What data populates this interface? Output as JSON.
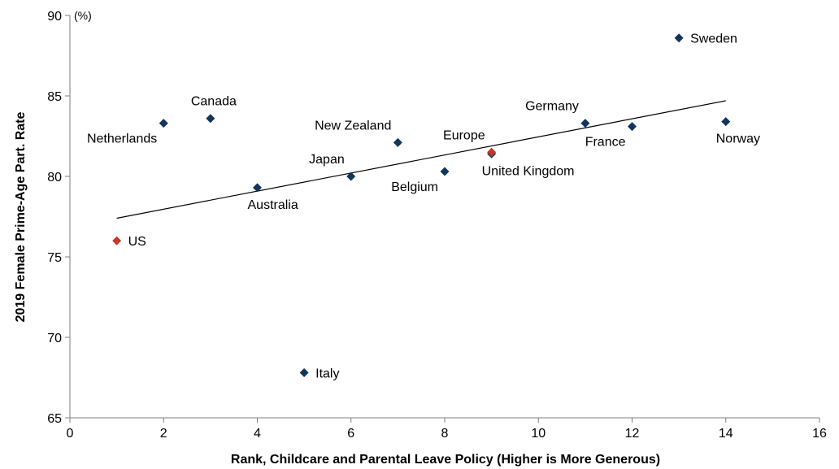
{
  "chart_data": {
    "type": "scatter",
    "xlabel": "Rank, Childcare and Parental Leave Policy (Higher is More Generous)",
    "ylabel": "2019 Female Prime-Age Part. Rate",
    "y_unit": "(%)",
    "xlim": [
      0,
      16
    ],
    "ylim": [
      65,
      90
    ],
    "x_ticks": [
      0,
      2,
      4,
      6,
      8,
      10,
      12,
      14,
      16
    ],
    "y_ticks": [
      65,
      70,
      75,
      80,
      85,
      90
    ],
    "grid": false,
    "legend": "none",
    "colors": {
      "country": "#12355b",
      "highlight": "#c0392b",
      "trendline": "#000000"
    },
    "points": [
      {
        "label": "US",
        "x": 1,
        "y": 76.0,
        "highlight": true,
        "label_pos": "right"
      },
      {
        "label": "Netherlands",
        "x": 2,
        "y": 83.3,
        "highlight": false,
        "label_pos": "below-left"
      },
      {
        "label": "Canada",
        "x": 3,
        "y": 83.6,
        "highlight": false,
        "label_pos": "above"
      },
      {
        "label": "Australia",
        "x": 4,
        "y": 79.3,
        "highlight": false,
        "label_pos": "below-right"
      },
      {
        "label": "Italy",
        "x": 5,
        "y": 67.8,
        "highlight": false,
        "label_pos": "right"
      },
      {
        "label": "Japan",
        "x": 6,
        "y": 80.0,
        "highlight": false,
        "label_pos": "above-left"
      },
      {
        "label": "New Zealand",
        "x": 7,
        "y": 82.1,
        "highlight": false,
        "label_pos": "above-left"
      },
      {
        "label": "Belgium",
        "x": 8,
        "y": 80.3,
        "highlight": false,
        "label_pos": "below-left"
      },
      {
        "label": "United Kingdom",
        "x": 9,
        "y": 81.4,
        "highlight": false,
        "label_pos": "below-right"
      },
      {
        "label": "Europe",
        "x": 9,
        "y": 81.5,
        "highlight": true,
        "label_pos": "above-left"
      },
      {
        "label": "Germany",
        "x": 11,
        "y": 83.3,
        "highlight": false,
        "label_pos": "above-left"
      },
      {
        "label": "France",
        "x": 12,
        "y": 83.1,
        "highlight": false,
        "label_pos": "below-left"
      },
      {
        "label": "Sweden",
        "x": 13,
        "y": 88.6,
        "highlight": false,
        "label_pos": "right"
      },
      {
        "label": "Norway",
        "x": 14,
        "y": 83.4,
        "highlight": false,
        "label_pos": "below-right"
      }
    ],
    "trendline": {
      "x": [
        1,
        14
      ],
      "y": [
        77.4,
        84.7
      ]
    }
  }
}
